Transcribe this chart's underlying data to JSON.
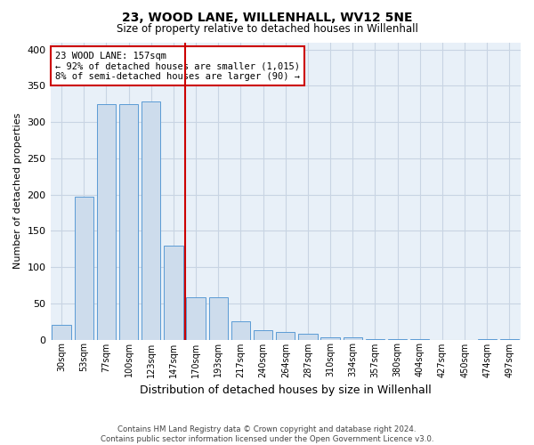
{
  "title": "23, WOOD LANE, WILLENHALL, WV12 5NE",
  "subtitle": "Size of property relative to detached houses in Willenhall",
  "xlabel": "Distribution of detached houses by size in Willenhall",
  "ylabel": "Number of detached properties",
  "footer_line1": "Contains HM Land Registry data © Crown copyright and database right 2024.",
  "footer_line2": "Contains public sector information licensed under the Open Government Licence v3.0.",
  "bar_labels": [
    "30sqm",
    "53sqm",
    "77sqm",
    "100sqm",
    "123sqm",
    "147sqm",
    "170sqm",
    "193sqm",
    "217sqm",
    "240sqm",
    "264sqm",
    "287sqm",
    "310sqm",
    "334sqm",
    "357sqm",
    "380sqm",
    "404sqm",
    "427sqm",
    "450sqm",
    "474sqm",
    "497sqm"
  ],
  "bar_values": [
    20,
    197,
    325,
    325,
    328,
    130,
    58,
    58,
    25,
    13,
    10,
    8,
    3,
    3,
    1,
    1,
    1,
    0,
    0,
    1,
    1
  ],
  "bar_color": "#cddcec",
  "bar_edgecolor": "#5b9bd5",
  "grid_color": "#c8d4e3",
  "background_color": "#e8f0f8",
  "vline_x": 5.5,
  "vline_color": "#cc0000",
  "annotation_text": "23 WOOD LANE: 157sqm\n← 92% of detached houses are smaller (1,015)\n8% of semi-detached houses are larger (90) →",
  "annotation_box_color": "#ffffff",
  "annotation_box_edgecolor": "#cc0000",
  "ylim": [
    0,
    410
  ],
  "yticks": [
    0,
    50,
    100,
    150,
    200,
    250,
    300,
    350,
    400
  ],
  "fig_width": 6.0,
  "fig_height": 5.0,
  "fig_dpi": 100
}
